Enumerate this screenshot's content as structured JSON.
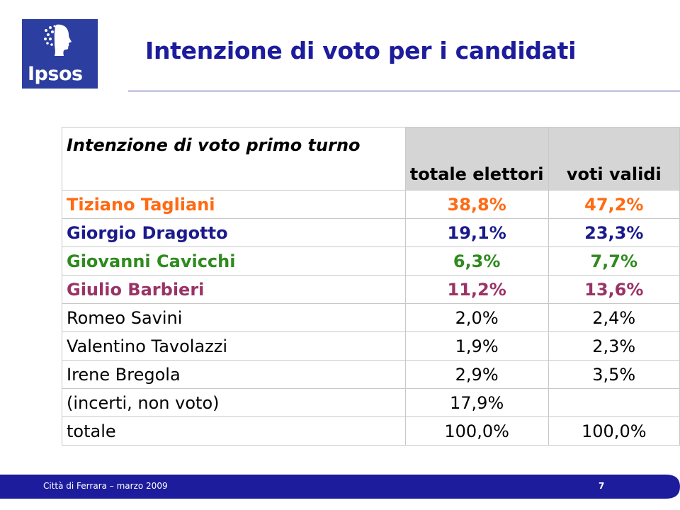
{
  "logo": {
    "text": "Ipsos"
  },
  "title": "Intenzione di voto per i candidati",
  "table": {
    "header": {
      "label": "Intenzione di voto primo turno",
      "col_total": "totale elettori",
      "col_valid": "voti validi"
    },
    "rows": [
      {
        "name": "Tiziano Tagliani",
        "total": "38,8%",
        "valid": "47,2%",
        "color": "#ff6a13",
        "bold": true
      },
      {
        "name": "Giorgio Dragotto",
        "total": "19,1%",
        "valid": "23,3%",
        "color": "#1a1a8c",
        "bold": true
      },
      {
        "name": "Giovanni Cavicchi",
        "total": "6,3%",
        "valid": "7,7%",
        "color": "#2e8b1e",
        "bold": true
      },
      {
        "name": "Giulio Barbieri",
        "total": "11,2%",
        "valid": "13,6%",
        "color": "#993366",
        "bold": true
      },
      {
        "name": "Romeo Savini",
        "total": "2,0%",
        "valid": "2,4%",
        "color": "#000000",
        "bold": false
      },
      {
        "name": "Valentino Tavolazzi",
        "total": "1,9%",
        "valid": "2,3%",
        "color": "#000000",
        "bold": false
      },
      {
        "name": "Irene Bregola",
        "total": "2,9%",
        "valid": "3,5%",
        "color": "#000000",
        "bold": false
      },
      {
        "name": "(incerti, non voto)",
        "total": "17,9%",
        "valid": "",
        "color": "#000000",
        "bold": false
      },
      {
        "name": "totale",
        "total": "100,0%",
        "valid": "100,0%",
        "color": "#000000",
        "bold": false
      }
    ]
  },
  "footer": {
    "text": "Città di Ferrara – marzo 2009",
    "page": "7",
    "band_color": "#1c1c9c"
  }
}
